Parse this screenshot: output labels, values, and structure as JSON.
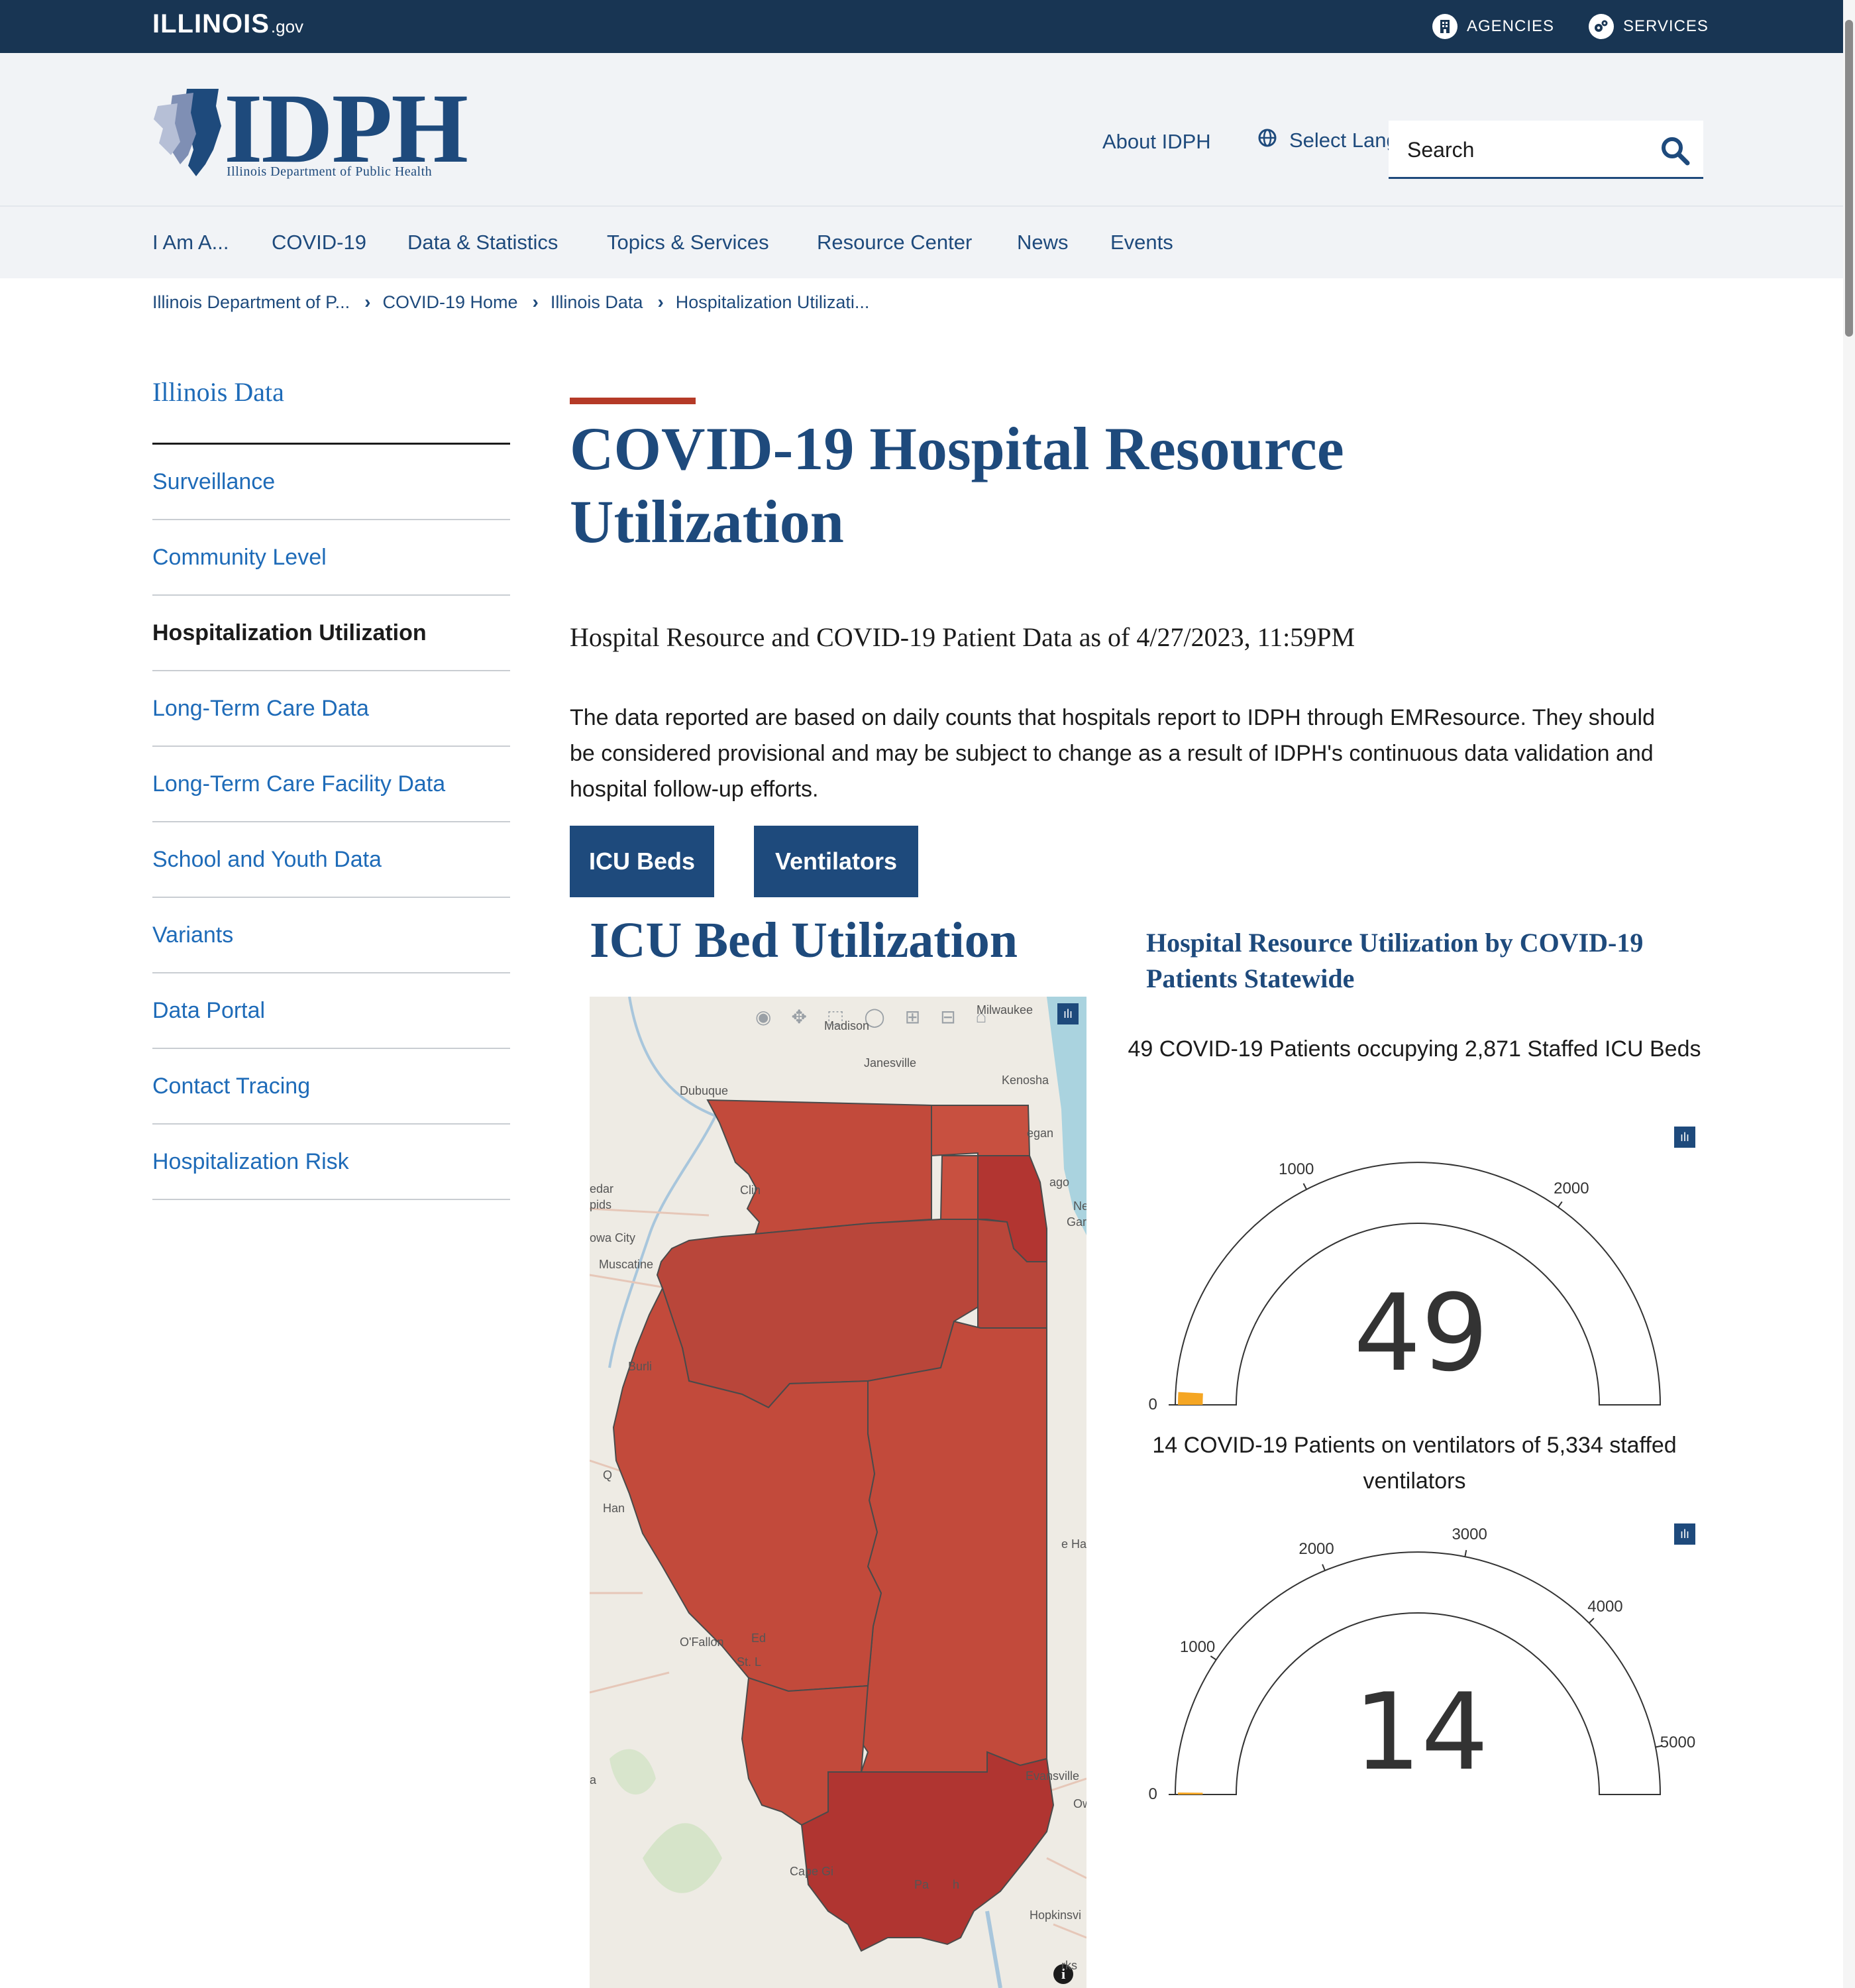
{
  "state_bar": {
    "logo_text": "ILLINOIS",
    "logo_suffix": ".gov",
    "agencies_label": "AGENCIES",
    "services_label": "SERVICES"
  },
  "header": {
    "logo_text": "IDPH",
    "logo_subtitle": "Illinois Department of Public Health",
    "about_link": "About IDPH",
    "language_label": "Select Language",
    "search_placeholder": "Search",
    "social": [
      "facebook-icon",
      "twitter-icon",
      "instagram-icon"
    ]
  },
  "nav": {
    "items": [
      "I Am A...",
      "COVID-19",
      "Data & Statistics",
      "Topics & Services",
      "Resource Center",
      "News",
      "Events"
    ]
  },
  "breadcrumb": {
    "items": [
      "Illinois Department of P...",
      "COVID-19 Home",
      "Illinois Data",
      "Hospitalization Utilizati..."
    ]
  },
  "sidebar": {
    "title": "Illinois Data",
    "items": [
      {
        "label": "Surveillance",
        "active": false
      },
      {
        "label": "Community Level",
        "active": false
      },
      {
        "label": "Hospitalization Utilization",
        "active": true
      },
      {
        "label": "Long-Term Care Data",
        "active": false
      },
      {
        "label": "Long-Term Care Facility Data",
        "active": false
      },
      {
        "label": "School and Youth Data",
        "active": false
      },
      {
        "label": "Variants",
        "active": false
      },
      {
        "label": "Data Portal",
        "active": false
      },
      {
        "label": "Contact Tracing",
        "active": false
      },
      {
        "label": "Hospitalization Risk",
        "active": false
      }
    ]
  },
  "main": {
    "title": "COVID-19 Hospital Resource Utilization",
    "subtitle": "Hospital Resource and COVID-19 Patient Data as of 4/27/2023, 11:59PM",
    "intro": "The data reported are based on daily counts that hospitals report to IDPH through EMResource. They should be considered provisional and may be subject to change as a result of IDPH's continuous data validation and hospital follow-up efforts.",
    "tabs": [
      "ICU Beds",
      "Ventilators"
    ],
    "section_title": "ICU Bed Utilization"
  },
  "map": {
    "places": [
      "Madison",
      "Milwaukee",
      "Janesville",
      "Kenosha",
      "Dubuque",
      "egan",
      "Clin",
      "ago",
      "Ne",
      "Gar",
      "edar",
      "pids",
      "owa City",
      "Muscatine",
      "Burli",
      "Q",
      "Han",
      "e Ha",
      "O'Fallon",
      "Ed",
      "St. L",
      "Evansville",
      "Ow",
      "a",
      "Cape Gi",
      "Pa",
      "h",
      "Hopkinsvi",
      "rks"
    ],
    "colors": {
      "region": "#c24a3b",
      "region_dark": "#b23531",
      "border": "#4a4a4a",
      "water": "#aad3df",
      "land": "#eeebe4"
    }
  },
  "gauges": {
    "heading": "Hospital Resource Utilization by COVID-19 Patients Statewide",
    "icu": {
      "caption": "49 COVID-19 Patients occupying 2,871 Staffed ICU Beds",
      "value": 49,
      "value_text": "49",
      "max": 2871,
      "ticks": [
        "0",
        "1000",
        "2000"
      ],
      "tick_values": [
        0,
        1000,
        2000
      ],
      "bar_color": "#f5a623"
    },
    "vent": {
      "caption": "14 COVID-19 Patients on ventilators of 5,334 staffed ventilators",
      "value": 14,
      "value_text": "14",
      "max": 5334,
      "ticks": [
        "0",
        "1000",
        "2000",
        "3000",
        "4000",
        "5000"
      ],
      "tick_values": [
        0,
        1000,
        2000,
        3000,
        4000,
        5000
      ],
      "bar_color": "#f5a623"
    }
  }
}
